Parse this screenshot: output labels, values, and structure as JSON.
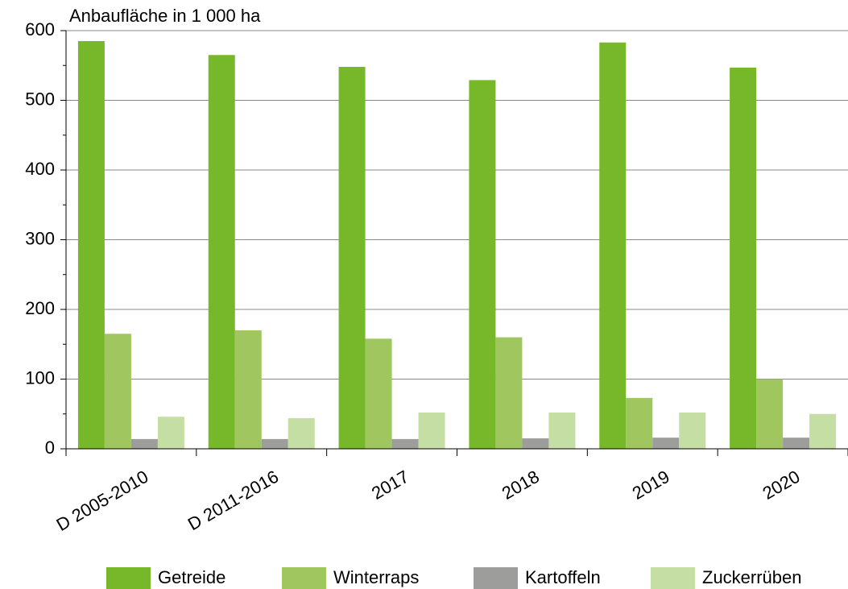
{
  "chart_data": {
    "type": "bar",
    "y_label": "Anbaufläche in 1 000 ha",
    "categories": [
      "D 2005-2010",
      "D 2011-2016",
      "2017",
      "2018",
      "2019",
      "2020"
    ],
    "series": [
      {
        "name": "Getreide",
        "color": "#76b82a",
        "values": [
          585,
          565,
          548,
          529,
          583,
          547
        ]
      },
      {
        "name": "Winterraps",
        "color": "#a0c75f",
        "values": [
          165,
          170,
          158,
          160,
          73,
          100
        ]
      },
      {
        "name": "Kartoffeln",
        "color": "#9d9d9c",
        "values": [
          14,
          14,
          14,
          15,
          16,
          16
        ]
      },
      {
        "name": "Zuckerrüben",
        "color": "#c5dea3",
        "values": [
          46,
          44,
          52,
          52,
          52,
          50
        ]
      }
    ],
    "ylim": [
      0,
      600
    ],
    "yticks": [
      0,
      100,
      200,
      300,
      400,
      500,
      600
    ],
    "minor_yticks": [
      50,
      150,
      250,
      350,
      450,
      550
    ],
    "grid": true,
    "legend": "bottom"
  }
}
